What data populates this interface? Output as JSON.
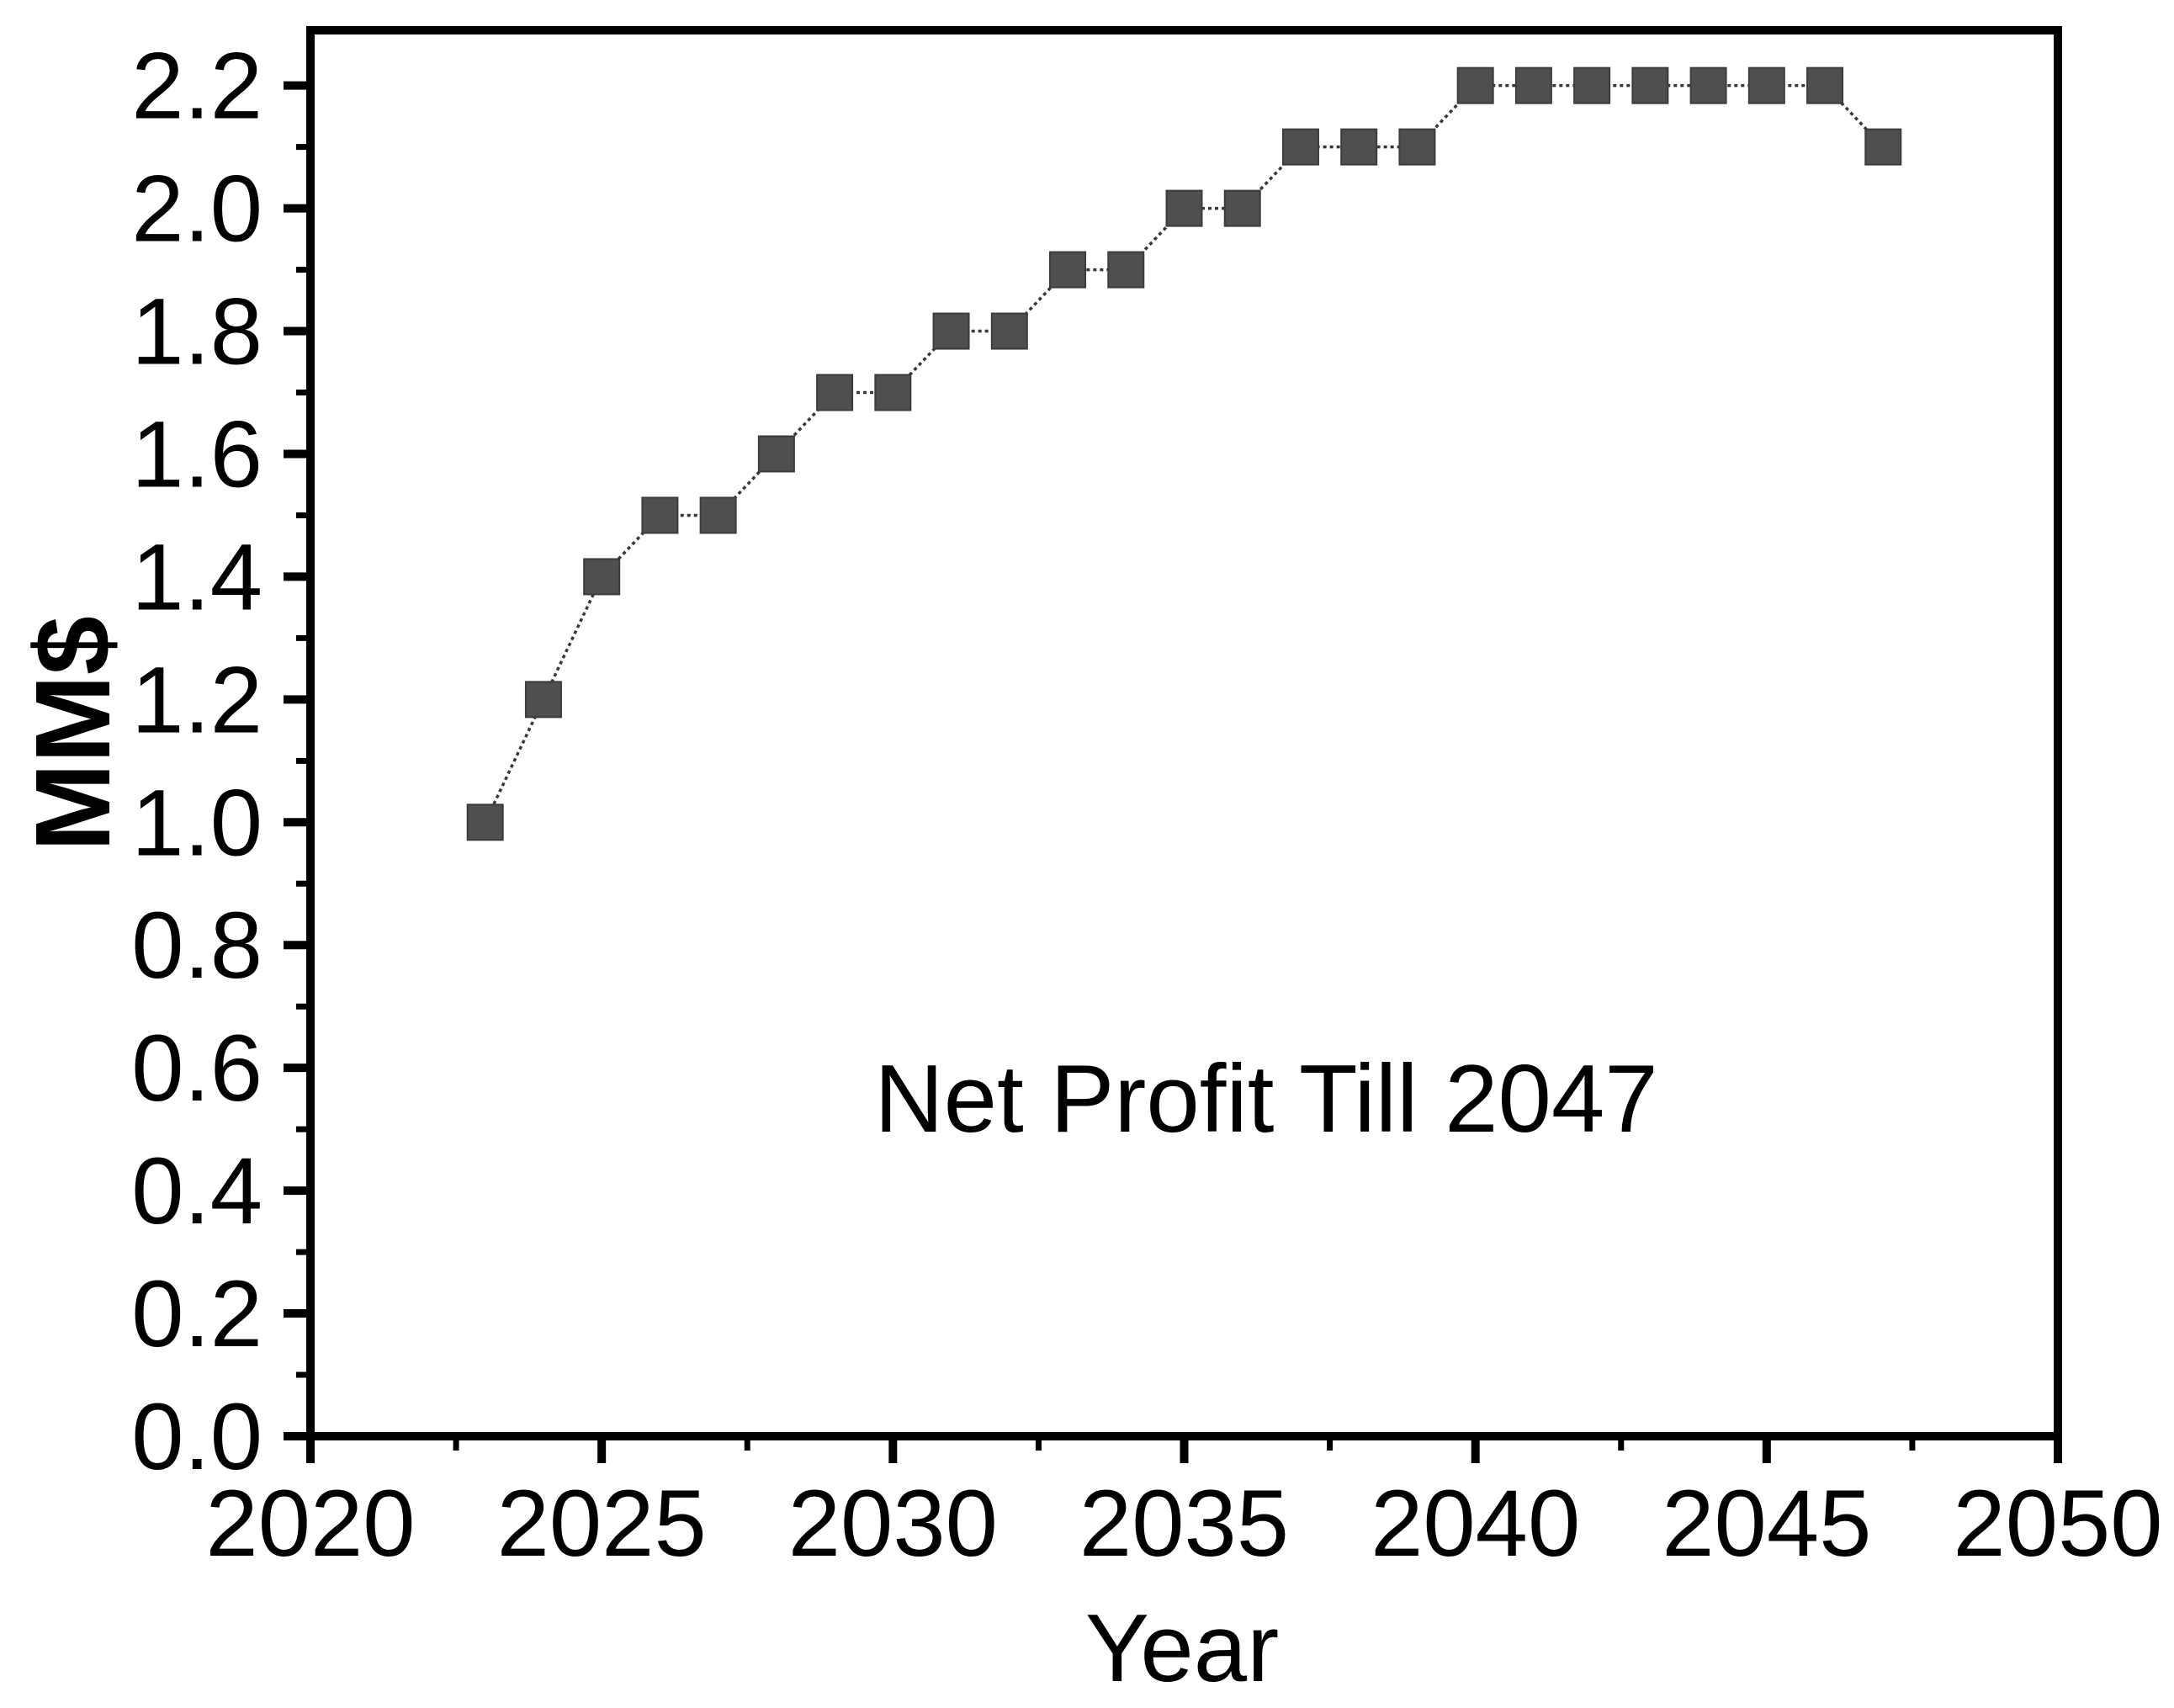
{
  "chart_data": {
    "type": "line",
    "title": "",
    "annotation": "Net Profit Till 2047",
    "xlabel": "Year",
    "ylabel": "MM$",
    "x": [
      2023,
      2024,
      2025,
      2026,
      2027,
      2028,
      2029,
      2030,
      2031,
      2032,
      2033,
      2034,
      2035,
      2036,
      2037,
      2038,
      2039,
      2040,
      2041,
      2042,
      2043,
      2044,
      2045,
      2046,
      2047
    ],
    "values": [
      1.0,
      1.2,
      1.4,
      1.5,
      1.5,
      1.6,
      1.7,
      1.7,
      1.8,
      1.8,
      1.9,
      1.9,
      2.0,
      2.0,
      2.1,
      2.1,
      2.1,
      2.2,
      2.2,
      2.2,
      2.2,
      2.2,
      2.2,
      2.2,
      2.1
    ],
    "series_name": "Net Profit",
    "marker": "square",
    "line_style": "dotted-thin",
    "grid": false,
    "legend": "none",
    "xlim": [
      2020,
      2050
    ],
    "ylim": [
      0,
      2.29
    ],
    "x_major_ticks": [
      2020,
      2025,
      2030,
      2035,
      2040,
      2045,
      2050
    ],
    "x_major_tick_labels": [
      "2020",
      "2025",
      "2030",
      "2035",
      "2040",
      "2045",
      "2050"
    ],
    "x_minor_ticks": [
      2022.5,
      2027.5,
      2032.5,
      2037.5,
      2042.5,
      2047.5
    ],
    "y_major_ticks": [
      0.0,
      0.2,
      0.4,
      0.6,
      0.8,
      1.0,
      1.2,
      1.4,
      1.6,
      1.8,
      2.0,
      2.2
    ],
    "y_major_tick_labels": [
      "0.0",
      "0.2",
      "0.4",
      "0.6",
      "0.8",
      "1.0",
      "1.2",
      "1.4",
      "1.6",
      "1.8",
      "2.0",
      "2.2"
    ],
    "y_minor_ticks": [
      0.1,
      0.3,
      0.5,
      0.7,
      0.9,
      1.1,
      1.3,
      1.5,
      1.7,
      1.9,
      2.1
    ],
    "colors": {
      "background": "#ffffff",
      "axis": "#000000",
      "text": "#000000",
      "marker_fill": "#4f4f4f",
      "marker_edge": "#3c3c3c",
      "line": "#383838"
    }
  }
}
